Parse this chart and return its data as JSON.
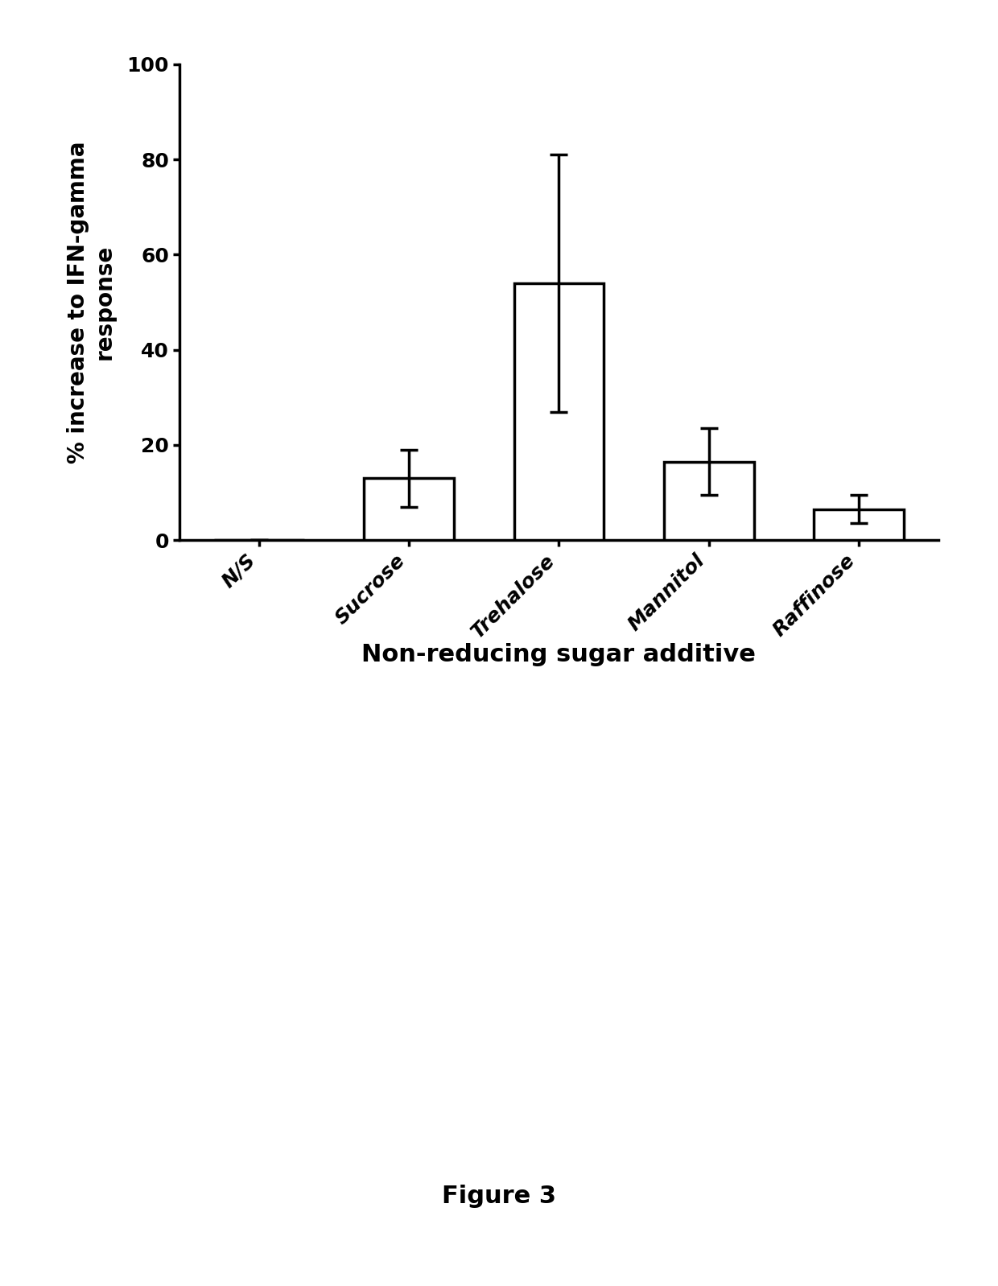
{
  "categories": [
    "N/S",
    "Sucrose",
    "Trehalose",
    "Mannitol",
    "Raffinose"
  ],
  "values": [
    0,
    13,
    54,
    16.5,
    6.5
  ],
  "errors": [
    0,
    6,
    27,
    7,
    3
  ],
  "ylabel": "% increase to IFN-gamma\nresponse",
  "xlabel": "Non-reducing sugar additive",
  "ylim": [
    0,
    100
  ],
  "yticks": [
    0,
    20,
    40,
    60,
    80,
    100
  ],
  "bar_color": "#ffffff",
  "bar_edgecolor": "#000000",
  "bar_linewidth": 2.5,
  "error_linewidth": 2.5,
  "error_capsize": 8,
  "figure_caption": "Figure 3",
  "background_color": "#ffffff",
  "ylabel_fontsize": 20,
  "xlabel_fontsize": 22,
  "tick_fontsize": 18,
  "caption_fontsize": 22
}
